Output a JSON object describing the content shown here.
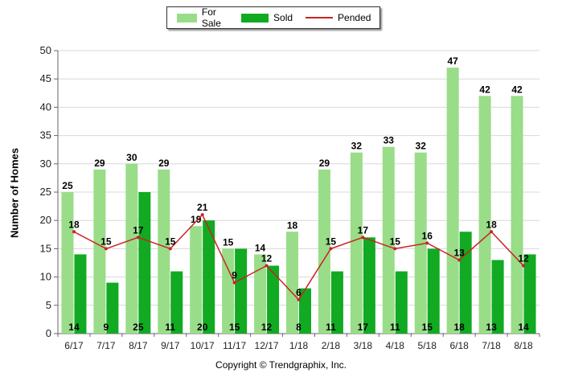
{
  "chart_data": {
    "type": "bar",
    "categories": [
      "6/17",
      "7/17",
      "8/17",
      "9/17",
      "10/17",
      "11/17",
      "12/17",
      "1/18",
      "2/18",
      "3/18",
      "4/18",
      "5/18",
      "6/18",
      "7/18",
      "8/18"
    ],
    "series": [
      {
        "name": "For Sale",
        "type": "bar",
        "color": "#99dd88",
        "values": [
          25,
          29,
          30,
          29,
          19,
          15,
          14,
          18,
          29,
          32,
          33,
          32,
          47,
          42,
          42
        ]
      },
      {
        "name": "Sold",
        "type": "bar",
        "color": "#11aa22",
        "values": [
          14,
          9,
          25,
          11,
          20,
          15,
          12,
          8,
          11,
          17,
          11,
          15,
          18,
          13,
          14
        ]
      },
      {
        "name": "Pended",
        "type": "line",
        "color": "#cc2222",
        "values": [
          18,
          15,
          17,
          15,
          21,
          9,
          12,
          6,
          15,
          17,
          15,
          16,
          13,
          18,
          12
        ]
      }
    ],
    "ylabel": "Number of Homes",
    "xlabel": "",
    "ylim": [
      0,
      50
    ],
    "yticks": [
      0,
      5,
      10,
      15,
      20,
      25,
      30,
      35,
      40,
      45,
      50
    ],
    "grid": true,
    "legend_position": "top-center"
  },
  "footer": "Copyright © Trendgraphix, Inc."
}
